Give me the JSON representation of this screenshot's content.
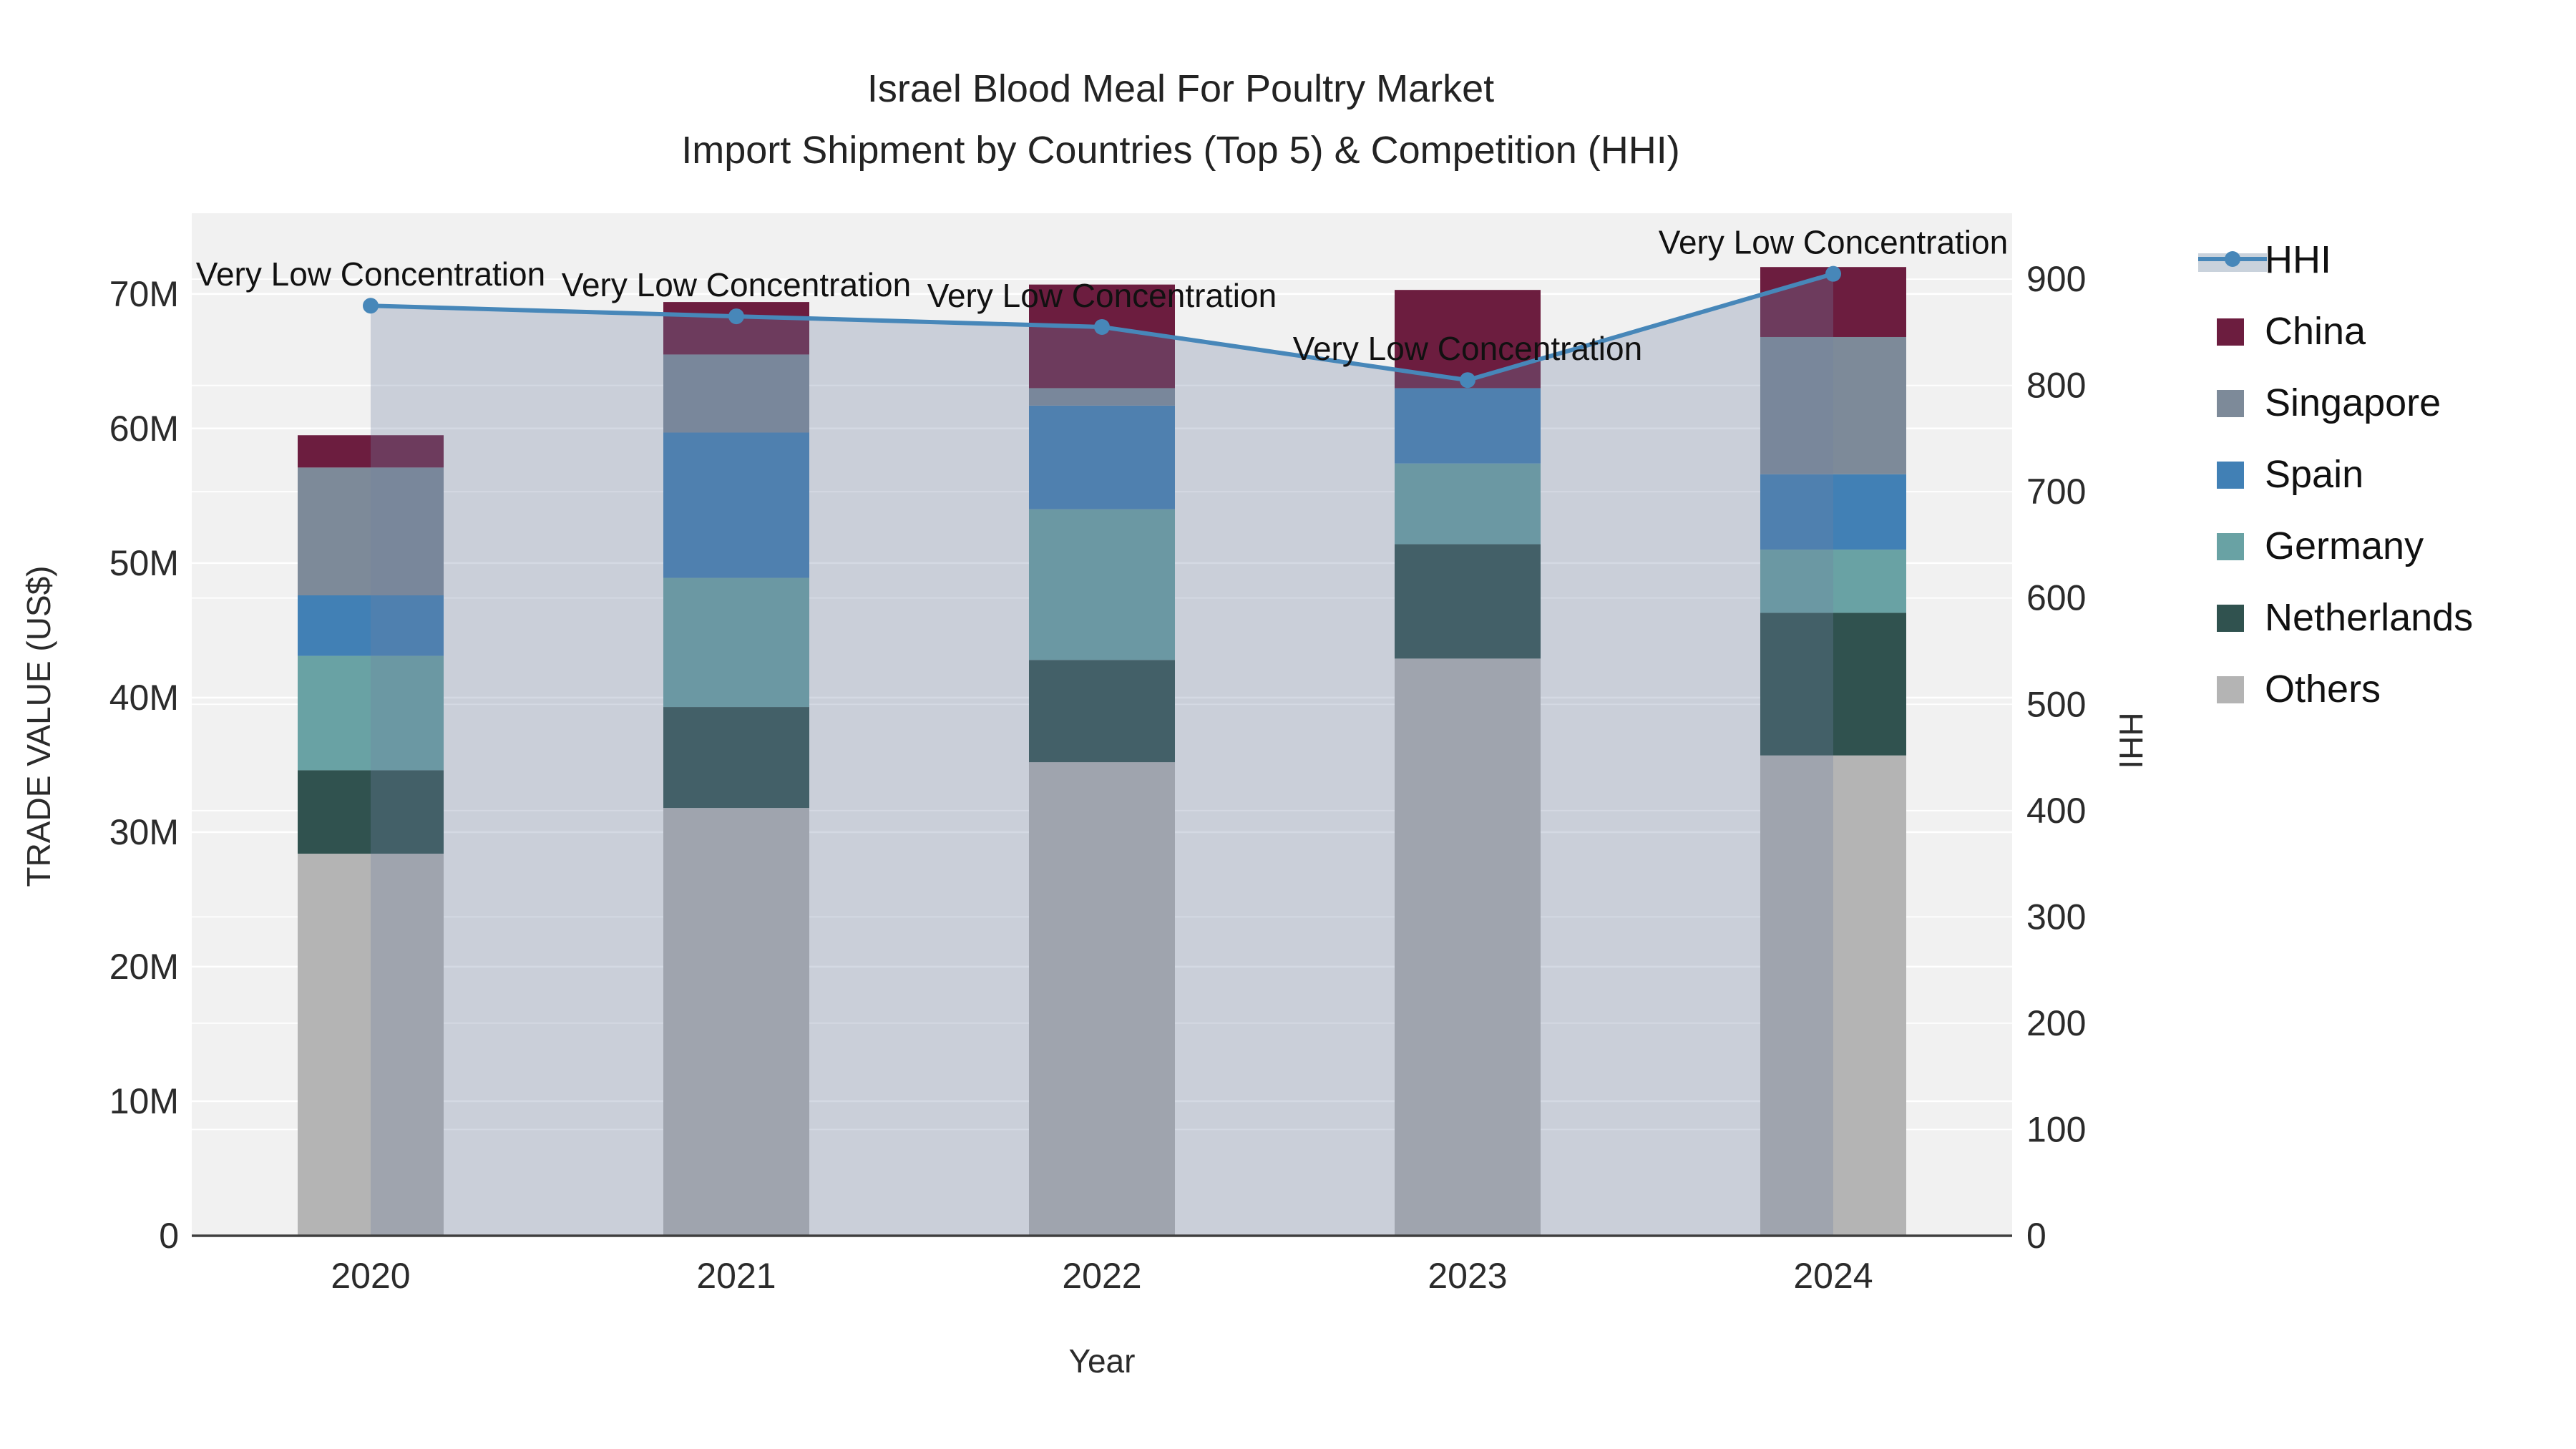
{
  "title": {
    "line1": "Israel Blood Meal For Poultry Market",
    "line2": "Import Shipment by Countries (Top 5) & Competition (HHI)"
  },
  "chart_data": {
    "type": "bar",
    "subtype": "stacked-bars-with-dual-axis-line",
    "categories": [
      "2020",
      "2021",
      "2022",
      "2023",
      "2024"
    ],
    "values_unit": "millions of US$",
    "bar_series": [
      {
        "name": "China",
        "color": "#6c1d3f",
        "values": [
          2.4,
          3.9,
          7.7,
          7.3,
          5.2
        ]
      },
      {
        "name": "Singapore",
        "color": "#7d8a99",
        "values": [
          9.5,
          5.8,
          1.3,
          0.0,
          10.2
        ]
      },
      {
        "name": "Spain",
        "color": "#4180b5",
        "values": [
          4.5,
          10.8,
          7.7,
          5.6,
          5.6
        ]
      },
      {
        "name": "Germany",
        "color": "#69a2a4",
        "values": [
          8.5,
          9.6,
          11.2,
          6.0,
          4.7
        ]
      },
      {
        "name": "Netherlands",
        "color": "#30524f",
        "values": [
          6.2,
          7.5,
          7.6,
          8.5,
          10.6
        ]
      },
      {
        "name": "Others",
        "color": "#b4b4b4",
        "values": [
          28.4,
          31.8,
          35.2,
          42.9,
          35.7
        ]
      }
    ],
    "line_series": {
      "name": "HHI",
      "color": "#4787b9",
      "fill": "rgba(113,130,161,0.30)",
      "values": [
        875,
        865,
        855,
        805,
        905
      ]
    },
    "annotations": [
      {
        "text": "Very Low Concentration",
        "category": "2020"
      },
      {
        "text": "Very Low Concentration",
        "category": "2021"
      },
      {
        "text": "Very Low Concentration",
        "category": "2022"
      },
      {
        "text": "Very Low Concentration",
        "category": "2023"
      },
      {
        "text": "Very Low Concentration",
        "category": "2024"
      }
    ],
    "xlabel": "Year",
    "ylabel_left": "TRADE VALUE (US$)",
    "ylabel_right": "HHI",
    "yticks_left": [
      "0",
      "10M",
      "20M",
      "30M",
      "40M",
      "50M",
      "60M",
      "70M"
    ],
    "yticks_right": [
      "0",
      "100",
      "200",
      "300",
      "400",
      "500",
      "600",
      "700",
      "800",
      "900"
    ],
    "ylim_left_millions": [
      0,
      76
    ],
    "ylim_right": [
      0,
      962
    ],
    "grid": "on",
    "legend_position": "right"
  },
  "legend": {
    "items": [
      {
        "label": "HHI",
        "type": "line",
        "color": "#4787b9",
        "band": "#c9d2dc"
      },
      {
        "label": "China",
        "type": "swatch",
        "color": "#6c1d3f"
      },
      {
        "label": "Singapore",
        "type": "swatch",
        "color": "#7d8a99"
      },
      {
        "label": "Spain",
        "type": "swatch",
        "color": "#4180b5"
      },
      {
        "label": "Germany",
        "type": "swatch",
        "color": "#69a2a4"
      },
      {
        "label": "Netherlands",
        "type": "swatch",
        "color": "#30524f"
      },
      {
        "label": "Others",
        "type": "swatch",
        "color": "#b4b4b4"
      }
    ]
  },
  "colors": {
    "plot_background": "#f1f1f1",
    "paper_background": "#ffffff",
    "gridline": "#ffffff",
    "axis_line": "#3f3f3f",
    "text": "#2b2b2b"
  }
}
